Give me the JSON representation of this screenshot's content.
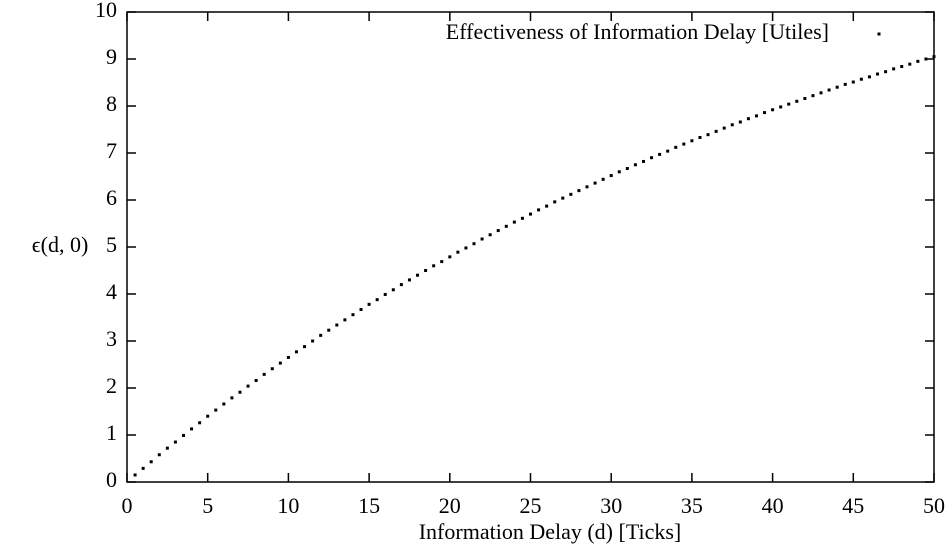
{
  "chart_data": {
    "type": "scatter",
    "xlabel": "Information Delay (d) [Ticks]",
    "ylabel": "ϵ(d, 0)",
    "legend_position": "top-right",
    "grid": false,
    "xlim": [
      0,
      50
    ],
    "xticks": [
      0,
      5,
      10,
      15,
      20,
      25,
      30,
      35,
      40,
      45,
      50
    ],
    "ylim": [
      0,
      10
    ],
    "yticks": [
      0,
      1,
      2,
      3,
      4,
      5,
      6,
      7,
      8,
      9,
      10
    ],
    "x": [
      0.5,
      1,
      1.5,
      2,
      2.5,
      3,
      3.5,
      4,
      4.5,
      5,
      5.5,
      6,
      6.5,
      7,
      7.5,
      8,
      8.5,
      9,
      9.5,
      10,
      10.5,
      11,
      11.5,
      12,
      12.5,
      13,
      13.5,
      14,
      14.5,
      15,
      15.5,
      16,
      16.5,
      17,
      17.5,
      18,
      18.5,
      19,
      19.5,
      20,
      20.5,
      21,
      21.5,
      22,
      22.5,
      23,
      23.5,
      24,
      24.5,
      25,
      25.5,
      26,
      26.5,
      27,
      27.5,
      28,
      28.5,
      29,
      29.5,
      30,
      30.5,
      31,
      31.5,
      32,
      32.5,
      33,
      33.5,
      34,
      34.5,
      35,
      35.5,
      36,
      36.5,
      37,
      37.5,
      38,
      38.5,
      39,
      39.5,
      40,
      40.5,
      41,
      41.5,
      42,
      42.5,
      43,
      43.5,
      44,
      44.5,
      45,
      45.5,
      46,
      46.5,
      47,
      47.5,
      48,
      48.5,
      49,
      49.5,
      50
    ],
    "series": [
      {
        "name": "Effectiveness of Information Delay [Utiles]",
        "color": "#000000",
        "values": [
          0.15,
          0.29,
          0.43,
          0.58,
          0.72,
          0.85,
          0.99,
          1.13,
          1.26,
          1.4,
          1.53,
          1.66,
          1.79,
          1.91,
          2.04,
          2.16,
          2.29,
          2.41,
          2.53,
          2.65,
          2.77,
          2.88,
          3.0,
          3.12,
          3.23,
          3.34,
          3.45,
          3.56,
          3.67,
          3.78,
          3.88,
          3.99,
          4.09,
          4.2,
          4.3,
          4.4,
          4.5,
          4.6,
          4.69,
          4.79,
          4.89,
          4.98,
          5.07,
          5.17,
          5.26,
          5.35,
          5.44,
          5.53,
          5.61,
          5.7,
          5.79,
          5.87,
          5.96,
          6.04,
          6.12,
          6.2,
          6.28,
          6.36,
          6.44,
          6.52,
          6.6,
          6.67,
          6.75,
          6.82,
          6.9,
          6.97,
          7.04,
          7.12,
          7.19,
          7.26,
          7.33,
          7.39,
          7.46,
          7.53,
          7.6,
          7.66,
          7.73,
          7.79,
          7.86,
          7.92,
          7.98,
          8.04,
          8.1,
          8.16,
          8.22,
          8.28,
          8.34,
          8.4,
          8.46,
          8.51,
          8.57,
          8.62,
          8.68,
          8.73,
          8.79,
          8.84,
          8.89,
          8.95,
          9.0,
          9.05
        ]
      }
    ]
  }
}
